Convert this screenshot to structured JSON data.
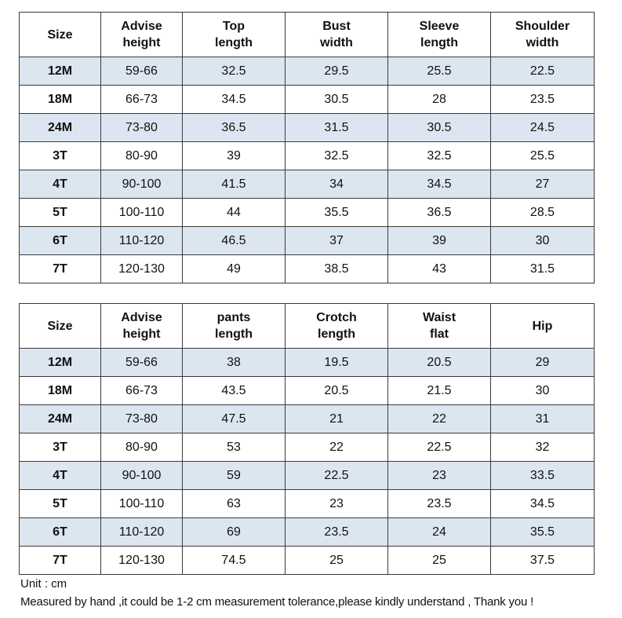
{
  "tables": [
    {
      "headers": [
        "Size",
        "Advise\nheight",
        "Top\nlength",
        "Bust\nwidth",
        "Sleeve\nlength",
        "Shoulder\nwidth"
      ],
      "rows": [
        [
          "12M",
          "59-66",
          "32.5",
          "29.5",
          "25.5",
          "22.5"
        ],
        [
          "18M",
          "66-73",
          "34.5",
          "30.5",
          "28",
          "23.5"
        ],
        [
          "24M",
          "73-80",
          "36.5",
          "31.5",
          "30.5",
          "24.5"
        ],
        [
          "3T",
          "80-90",
          "39",
          "32.5",
          "32.5",
          "25.5"
        ],
        [
          "4T",
          "90-100",
          "41.5",
          "34",
          "34.5",
          "27"
        ],
        [
          "5T",
          "100-110",
          "44",
          "35.5",
          "36.5",
          "28.5"
        ],
        [
          "6T",
          "110-120",
          "46.5",
          "37",
          "39",
          "30"
        ],
        [
          "7T",
          "120-130",
          "49",
          "38.5",
          "43",
          "31.5"
        ]
      ]
    },
    {
      "headers": [
        "Size",
        "Advise\nheight",
        "pants\nlength",
        "Crotch\nlength",
        "Waist\nflat",
        "Hip"
      ],
      "rows": [
        [
          "12M",
          "59-66",
          "38",
          "19.5",
          "20.5",
          "29"
        ],
        [
          "18M",
          "66-73",
          "43.5",
          "20.5",
          "21.5",
          "30"
        ],
        [
          "24M",
          "73-80",
          "47.5",
          "21",
          "22",
          "31"
        ],
        [
          "3T",
          "80-90",
          "53",
          "22",
          "22.5",
          "32"
        ],
        [
          "4T",
          "90-100",
          "59",
          "22.5",
          "23",
          "33.5"
        ],
        [
          "5T",
          "100-110",
          "63",
          "23",
          "23.5",
          "34.5"
        ],
        [
          "6T",
          "110-120",
          "69",
          "23.5",
          "24",
          "35.5"
        ],
        [
          "7T",
          "120-130",
          "74.5",
          "25",
          "25",
          "37.5"
        ]
      ]
    }
  ],
  "notes": {
    "unit": "Unit : cm",
    "measurement": "Measured by hand ,it could be 1-2 cm measurement tolerance,please kindly understand , Thank you !"
  },
  "colors": {
    "shaded_row": "#dce6f1",
    "border": "#3a3a3a"
  }
}
